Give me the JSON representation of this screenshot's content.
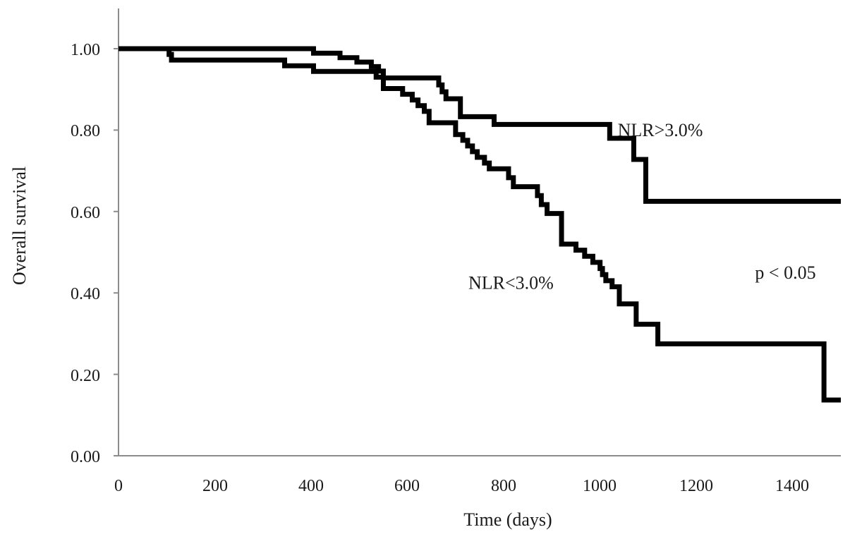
{
  "chart_data": {
    "type": "line",
    "xlabel": "Time (days)",
    "ylabel": "Overall survival",
    "xlim": [
      0,
      1500
    ],
    "ylim": [
      0,
      1.1
    ],
    "x_ticks": [
      "0",
      "200",
      "400",
      "600",
      "800",
      "1000",
      "1200",
      "1400"
    ],
    "y_ticks": [
      "0.00",
      "0.20",
      "0.40",
      "0.60",
      "0.80",
      "1.00"
    ],
    "x_tick_values": [
      0,
      200,
      400,
      600,
      800,
      1000,
      1200,
      1400
    ],
    "y_tick_values": [
      0,
      0.2,
      0.4,
      0.6,
      0.8,
      1.0
    ],
    "grid": false,
    "step": true,
    "series": [
      {
        "name": "NLR>3.0%",
        "x": [
          0,
          405,
          460,
          495,
          525,
          540,
          550,
          665,
          672,
          680,
          710,
          780,
          1020,
          1070,
          1095,
          1500
        ],
        "y": [
          1.0,
          0.989,
          0.978,
          0.967,
          0.956,
          0.945,
          0.928,
          0.911,
          0.894,
          0.877,
          0.833,
          0.814,
          0.78,
          0.728,
          0.625,
          0.625
        ]
      },
      {
        "name": "NLR<3.0%",
        "x": [
          0,
          105,
          110,
          345,
          405,
          535,
          550,
          590,
          610,
          622,
          635,
          645,
          700,
          715,
          725,
          735,
          745,
          760,
          770,
          785,
          810,
          820,
          870,
          878,
          890,
          920,
          930,
          950,
          968,
          985,
          1000,
          1005,
          1012,
          1025,
          1040,
          1075,
          1120,
          1465,
          1500
        ],
        "y": [
          1.0,
          0.986,
          0.972,
          0.958,
          0.944,
          0.93,
          0.902,
          0.888,
          0.874,
          0.86,
          0.846,
          0.818,
          0.789,
          0.775,
          0.761,
          0.747,
          0.733,
          0.719,
          0.705,
          0.705,
          0.683,
          0.661,
          0.639,
          0.617,
          0.595,
          0.52,
          0.52,
          0.505,
          0.49,
          0.475,
          0.46,
          0.445,
          0.43,
          0.415,
          0.373,
          0.323,
          0.275,
          0.137,
          0.137
        ]
      }
    ],
    "annotations": [
      {
        "text": "NLR>3.0%",
        "x": 1125,
        "y": 0.785
      },
      {
        "text": "NLR<3.0%",
        "x": 815,
        "y": 0.41
      },
      {
        "text": "p < 0.05",
        "x": 1385,
        "y": 0.435
      }
    ]
  }
}
